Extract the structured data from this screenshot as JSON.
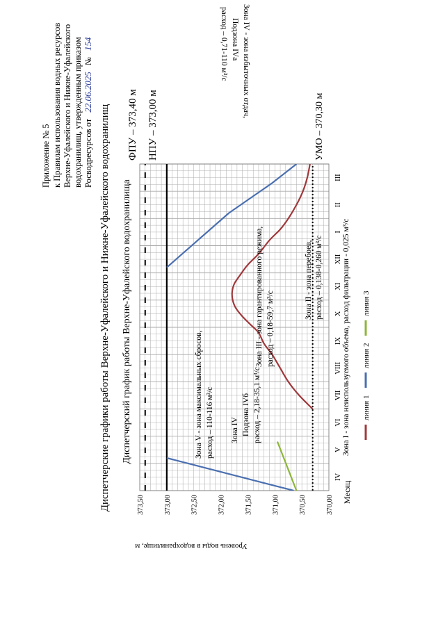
{
  "header": {
    "line1": "Приложение № 5",
    "line2": "к Правилам использования водных ресурсов",
    "line3": "Верхне-Уфалейского и Нижне-Уфалейского",
    "line4": "водохранилищ,    утвержденным    приказом",
    "line5_prefix": "Росводресурсов от",
    "date": "22.06.2025",
    "num_label": "№",
    "number": "154"
  },
  "main_title": "Диспетчерские графики работы Верхне-Уфалейского и Нижне-Уфалейского водохранилищ",
  "chart_title": "Диспетчерский график работы Верхне-Уфалейского водохранилища",
  "side_label": "Уровень воды в водохранилище, м",
  "colors": {
    "line1": "#a0393c",
    "line2": "#4a6fb0",
    "line3": "#8db63a",
    "grid": "#aaaaaa"
  },
  "chart_data": {
    "type": "line",
    "title": "Диспетчерский график работы Верхне-Уфалейского водохранилища",
    "xlabel": "Месяц",
    "ylabel": "Уровень воды в водохранилище, м",
    "ylim": [
      370.0,
      373.5
    ],
    "yticks": [
      "373,50",
      "373,00",
      "372,50",
      "372,00",
      "371,50",
      "371,00",
      "370,50",
      "370,00"
    ],
    "ytick_values": [
      373.5,
      373.0,
      372.5,
      372.0,
      371.5,
      371.0,
      370.5,
      370.0
    ],
    "months": [
      "IV",
      "V",
      "VI",
      "VII",
      "VIII",
      "IX",
      "X",
      "XI",
      "XII",
      "I",
      "II",
      "III"
    ],
    "xlim": [
      0,
      12
    ],
    "series": [
      {
        "name": "линия 1",
        "color": "#a0393c",
        "x": [
          3.0,
          3.5,
          4.0,
          4.5,
          5.0,
          5.4,
          5.8,
          6.1,
          6.4,
          6.7,
          7.0,
          7.3,
          7.6,
          7.9,
          8.3,
          8.7,
          9.2,
          9.6,
          10.0,
          10.5,
          11.0,
          11.5,
          12.0
        ],
        "y": [
          370.3,
          370.55,
          370.75,
          370.9,
          371.05,
          371.2,
          371.3,
          371.45,
          371.6,
          371.72,
          371.78,
          371.79,
          371.75,
          371.65,
          371.5,
          371.3,
          371.1,
          370.9,
          370.75,
          370.6,
          370.48,
          370.4,
          370.35
        ]
      },
      {
        "name": "линия 2",
        "color": "#4a6fb0",
        "x": [
          0.0,
          1.2,
          3.2,
          8.2,
          10.2,
          11.3,
          12.0
        ],
        "y": [
          370.65,
          373.0,
          373.0,
          373.0,
          371.85,
          371.05,
          370.6
        ],
        "segments": [
          [
            0,
            1
          ],
          [
            3,
            4,
            5,
            6
          ]
        ]
      },
      {
        "name": "линия 3",
        "color": "#8db63a",
        "x": [
          0.0,
          12.0
        ],
        "y": [
          370.6,
          372.95
        ],
        "range": [
          0,
          1.8
        ]
      }
    ],
    "hlines": [
      {
        "name": "ФПУ",
        "y": 373.4,
        "style": "dashed",
        "label": "ФПУ – 373,40 м"
      },
      {
        "name": "НПУ",
        "y": 373.0,
        "style": "solid",
        "label": "НПУ – 373,00 м"
      },
      {
        "name": "УМО",
        "y": 370.3,
        "style": "dotted",
        "label": "УМО – 370,30 м"
      }
    ],
    "zones": {
      "z5a": "Зона V - зона максимальных сбросов,",
      "z5b": "расход – 110-116 м³/с",
      "z4a_a": "Зона IV - зона избыточных отдач,",
      "z4a_b": "Подзона IVа",
      "z4a_c": "расход – 0,71-110 м³/с",
      "z3a": "Зона III - зона гарантированного режима,",
      "z3b": "расход – 0,18-59,7 м³/с",
      "z2a": "Зона II - зона перебоев,",
      "z2b": "расход – 0,138-0,260 м³/с",
      "z4b_a": "Зона IV",
      "z4b_b": "Подзона IVб",
      "z4b_c": "расход – 2,18-35,1 м³/с",
      "z1": "Зона I - зона неиспользуемого объема, расход фильтрации - 0,025 м³/с"
    },
    "legend": [
      "линия 1",
      "линия 2",
      "линия 3"
    ]
  }
}
